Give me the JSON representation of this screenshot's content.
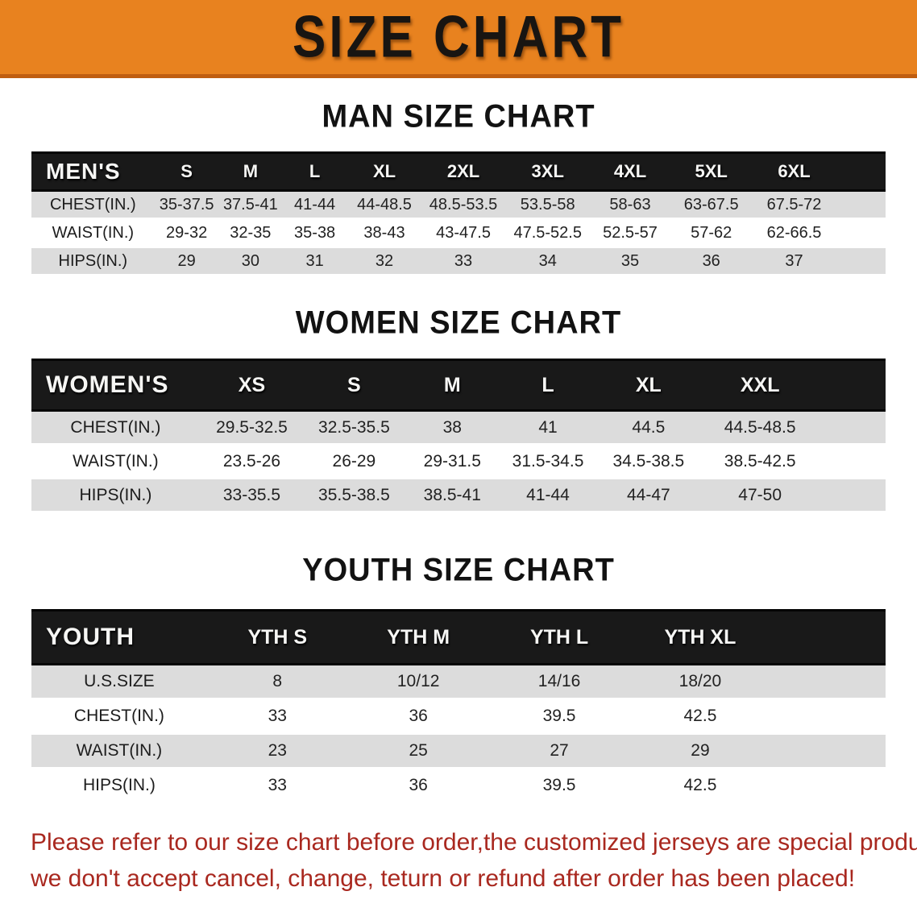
{
  "banner": {
    "title": "SIZE CHART",
    "bg_color": "#e8821f",
    "border_color": "#c05e10"
  },
  "chart_data": [
    {
      "type": "table",
      "title": "MAN SIZE CHART",
      "corner_label": "MEN'S",
      "columns": [
        "S",
        "M",
        "L",
        "XL",
        "2XL",
        "3XL",
        "4XL",
        "5XL",
        "6XL"
      ],
      "rows": [
        {
          "label": "CHEST(IN.)",
          "values": [
            "35-37.5",
            "37.5-41",
            "41-44",
            "44-48.5",
            "48.5-53.5",
            "53.5-58",
            "58-63",
            "63-67.5",
            "67.5-72"
          ]
        },
        {
          "label": "WAIST(IN.)",
          "values": [
            "29-32",
            "32-35",
            "35-38",
            "38-43",
            "43-47.5",
            "47.5-52.5",
            "52.5-57",
            "57-62",
            "62-66.5"
          ]
        },
        {
          "label": "HIPS(IN.)",
          "values": [
            "29",
            "30",
            "31",
            "32",
            "33",
            "34",
            "35",
            "36",
            "37"
          ]
        }
      ]
    },
    {
      "type": "table",
      "title": "WOMEN SIZE CHART",
      "corner_label": "WOMEN'S",
      "columns": [
        "XS",
        "S",
        "M",
        "L",
        "XL",
        "XXL"
      ],
      "rows": [
        {
          "label": "CHEST(IN.)",
          "values": [
            "29.5-32.5",
            "32.5-35.5",
            "38",
            "41",
            "44.5",
            "44.5-48.5"
          ]
        },
        {
          "label": "WAIST(IN.)",
          "values": [
            "23.5-26",
            "26-29",
            "29-31.5",
            "31.5-34.5",
            "34.5-38.5",
            "38.5-42.5"
          ]
        },
        {
          "label": "HIPS(IN.)",
          "values": [
            "33-35.5",
            "35.5-38.5",
            "38.5-41",
            "41-44",
            "44-47",
            "47-50"
          ]
        }
      ]
    },
    {
      "type": "table",
      "title": "YOUTH SIZE CHART",
      "corner_label": "YOUTH",
      "columns": [
        "YTH S",
        "YTH M",
        "YTH L",
        "YTH XL"
      ],
      "rows": [
        {
          "label": "U.S.SIZE",
          "values": [
            "8",
            "10/12",
            "14/16",
            "18/20"
          ]
        },
        {
          "label": "CHEST(IN.)",
          "values": [
            "33",
            "36",
            "39.5",
            "42.5"
          ]
        },
        {
          "label": "WAIST(IN.)",
          "values": [
            "23",
            "25",
            "27",
            "29"
          ]
        },
        {
          "label": "HIPS(IN.)",
          "values": [
            "33",
            "36",
            "39.5",
            "42.5"
          ]
        }
      ]
    }
  ],
  "footer": {
    "line1": "Please refer to our size chart before order,the customized jerseys are special products,",
    "line2": "we don't accept cancel, change, teturn or refund after order has been placed!",
    "text_color": "#a9281f"
  }
}
